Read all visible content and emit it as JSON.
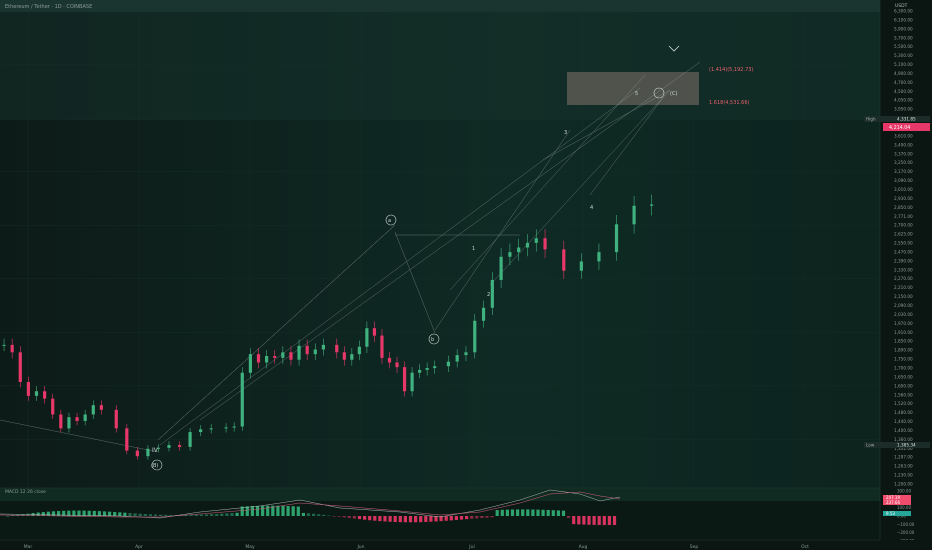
{
  "header": {
    "symbol_title": "Ethereum / Tether · 1D · COINBASE"
  },
  "price_axis": {
    "currency": "USDT",
    "ticks": [
      "6,300.00",
      "6,100.00",
      "5,900.00",
      "5,700.00",
      "5,500.00",
      "5,300.00",
      "5,100.00",
      "4,900.00",
      "4,700.00",
      "4,500.00",
      "4,050.00",
      "3,950.00",
      "3,850.00",
      "3,730.00",
      "3,610.00",
      "3,490.00",
      "3,370.00",
      "3,250.00",
      "3,170.00",
      "3,090.00",
      "3,010.00",
      "2,930.00",
      "2,850.00",
      "2,771.00",
      "2,700.00",
      "2,625.00",
      "2,550.00",
      "2,470.00",
      "2,390.00",
      "2,330.00",
      "2,270.00",
      "2,210.00",
      "2,150.00",
      "2,090.00",
      "2,030.00",
      "1,970.00",
      "1,910.00",
      "1,850.00",
      "1,800.00",
      "1,750.00",
      "1,700.00",
      "1,650.00",
      "1,600.00",
      "1,560.00",
      "1,520.00",
      "1,480.00",
      "1,440.00",
      "1,400.00",
      "1,360.00",
      "1,332.00",
      "1,297.00",
      "1,263.00",
      "1,230.00",
      "1,200.00"
    ],
    "high_label": "High",
    "high_value": "4,331.85",
    "current_value": "4,214.04",
    "low_label": "Low",
    "low_value": "1,385.34"
  },
  "macd_axis": {
    "title": "MACD 12 26 close",
    "ticks": [
      "300.00",
      "200.00",
      "100.00",
      "0.00",
      "−100.00",
      "−200.00",
      "−300.00"
    ],
    "badges": [
      "247.19",
      "237.66",
      "9.53"
    ],
    "badge_colors": [
      "#ef4c6e",
      "#ef4c6e",
      "#26a69a"
    ]
  },
  "time_axis": {
    "labels": [
      "Mar",
      "Apr",
      "May",
      "Jun",
      "Jul",
      "Aug",
      "Sep",
      "Oct"
    ]
  },
  "colors": {
    "up": "#3fb27f",
    "down": "#e8386a",
    "grid": "#17302a",
    "text": "#8a9a96",
    "wave_label": "#cfd8d6"
  },
  "fib_box": {
    "upper_label": "(1.414)(5,192.73)",
    "lower_label": "1.618(4,531.66)"
  },
  "wave_labels": [
    "IV",
    "(B)",
    "a",
    "b",
    "1",
    "2",
    "3",
    "4",
    "5",
    "(C)"
  ],
  "chart_data": {
    "type": "candlestick",
    "title": "Ethereum / Tether · 1D · COINBASE",
    "ylabel": "USDT",
    "ylim": [
      1200,
      6300
    ],
    "x_labels": [
      "Mar",
      "Apr",
      "May",
      "Jun",
      "Jul",
      "Aug",
      "Sep",
      "Oct"
    ],
    "close_path": [
      [
        "Mar",
        2700
      ],
      [
        "Mar",
        2620
      ],
      [
        "Mar",
        2300
      ],
      [
        "Mar",
        2150
      ],
      [
        "Mar",
        2200
      ],
      [
        "Mar",
        2120
      ],
      [
        "Mar",
        1950
      ],
      [
        "Mar",
        1800
      ],
      [
        "Mar",
        1920
      ],
      [
        "Mar",
        1880
      ],
      [
        "Mar",
        1950
      ],
      [
        "Mar",
        2050
      ],
      [
        "Mar",
        2000
      ],
      [
        "Apr",
        1800
      ],
      [
        "Apr",
        1560
      ],
      [
        "Apr",
        1500
      ],
      [
        "Apr",
        1580
      ],
      [
        "Apr",
        1590
      ],
      [
        "Apr",
        1620
      ],
      [
        "Apr",
        1600
      ],
      [
        "Apr",
        1760
      ],
      [
        "Apr",
        1790
      ],
      [
        "Apr",
        1800
      ],
      [
        "May",
        1810
      ],
      [
        "May",
        1820
      ],
      [
        "May",
        2400
      ],
      [
        "May",
        2600
      ],
      [
        "May",
        2510
      ],
      [
        "May",
        2580
      ],
      [
        "May",
        2560
      ],
      [
        "May",
        2620
      ],
      [
        "May",
        2540
      ],
      [
        "May",
        2690
      ],
      [
        "May",
        2600
      ],
      [
        "May",
        2650
      ],
      [
        "May",
        2700
      ],
      [
        "Jun",
        2620
      ],
      [
        "Jun",
        2540
      ],
      [
        "Jun",
        2600
      ],
      [
        "Jun",
        2680
      ],
      [
        "Jun",
        2880
      ],
      [
        "Jun",
        2800
      ],
      [
        "Jun",
        2560
      ],
      [
        "Jun",
        2510
      ],
      [
        "Jun",
        2460
      ],
      [
        "Jun",
        2200
      ],
      [
        "Jun",
        2400
      ],
      [
        "Jun",
        2430
      ],
      [
        "Jun",
        2450
      ],
      [
        "Jun",
        2470
      ],
      [
        "Jul",
        2520
      ],
      [
        "Jul",
        2590
      ],
      [
        "Jul",
        2620
      ],
      [
        "Jul",
        2960
      ],
      [
        "Jul",
        3100
      ],
      [
        "Jul",
        3400
      ],
      [
        "Jul",
        3650
      ],
      [
        "Jul",
        3700
      ],
      [
        "Jul",
        3750
      ],
      [
        "Jul",
        3800
      ],
      [
        "Jul",
        3850
      ],
      [
        "Jul",
        3730
      ],
      [
        "Aug",
        3500
      ],
      [
        "Aug",
        3600
      ],
      [
        "Aug",
        3700
      ],
      [
        "Aug",
        4000
      ],
      [
        "Aug",
        4200
      ],
      [
        "Aug",
        4214
      ]
    ],
    "series": [
      {
        "name": "High",
        "values": [
          4331.85
        ]
      },
      {
        "name": "Low",
        "values": [
          1385.34
        ]
      }
    ],
    "fib_levels": [
      {
        "ratio": 1.414,
        "price": 5192.73
      },
      {
        "ratio": 1.618,
        "price": 4531.66
      }
    ],
    "macd": {
      "params": "12 26 close",
      "values": [
        247.19,
        237.66,
        9.53
      ]
    }
  }
}
